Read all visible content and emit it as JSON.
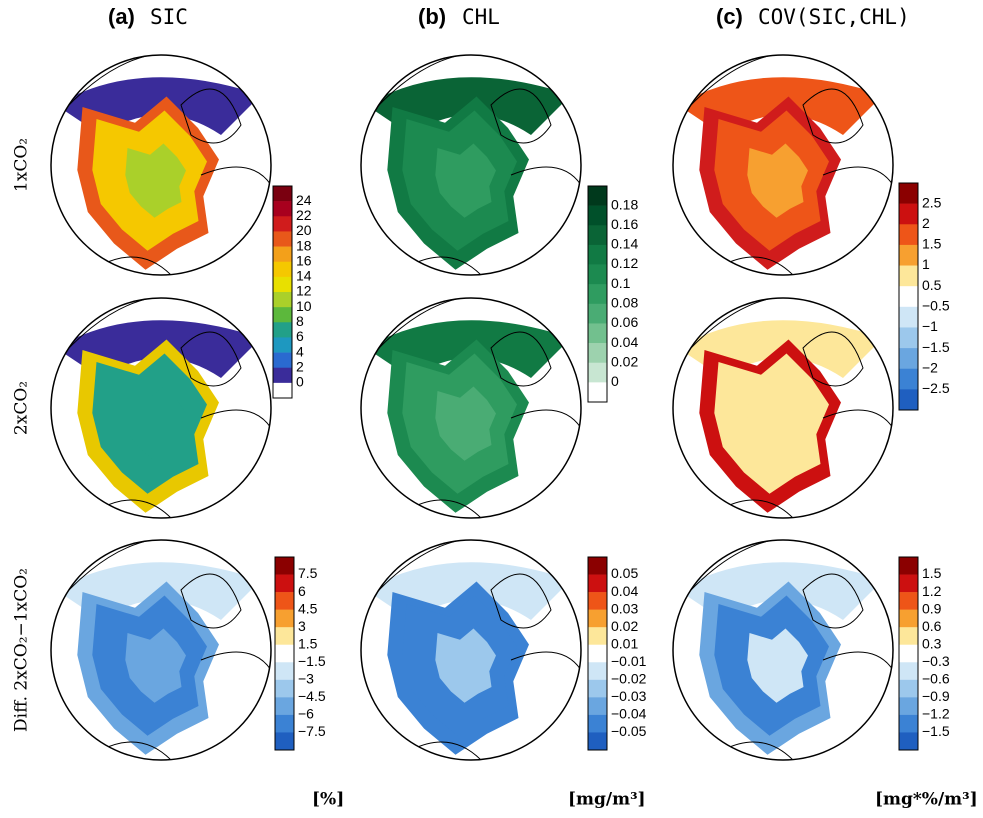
{
  "columns": [
    {
      "label": "(a)",
      "title": "SIC"
    },
    {
      "label": "(b)",
      "title": "CHL"
    },
    {
      "label": "(c)",
      "title": "COV(SIC,CHL)"
    }
  ],
  "rows": [
    "1xCO₂",
    "2xCO₂",
    "Diff. 2xCO₂−1xCO₂"
  ],
  "colorbars": [
    {
      "ticks": [
        "24",
        "22",
        "20",
        "18",
        "16",
        "14",
        "12",
        "10",
        "8",
        "6",
        "4",
        "2",
        "0"
      ],
      "colors": [
        "#7a0010",
        "#a8001e",
        "#d01c1c",
        "#e8581a",
        "#f3a01a",
        "#f5c800",
        "#e8e000",
        "#aad02a",
        "#5cb83c",
        "#22a088",
        "#1e98c0",
        "#2a6ad0",
        "#3a2c9a",
        "#ffffff"
      ]
    },
    {
      "ticks": [
        "7.5",
        "6",
        "4.5",
        "3",
        "1.5",
        "−1.5",
        "−3",
        "−4.5",
        "−6",
        "−7.5"
      ],
      "colors": [
        "#8b0000",
        "#cc1010",
        "#ee5518",
        "#f7a030",
        "#fde79a",
        "#ffffff",
        "#cfe6f6",
        "#9cc8ec",
        "#6aa6e0",
        "#3b82d4",
        "#1f5fc0"
      ]
    },
    {
      "ticks": [
        "0.18",
        "0.16",
        "0.14",
        "0.12",
        "0.1",
        "0.08",
        "0.06",
        "0.04",
        "0.02",
        "0"
      ],
      "colors": [
        "#00391c",
        "#00502a",
        "#0a6436",
        "#117a44",
        "#1c8a50",
        "#2f9c60",
        "#4aac74",
        "#72c08e",
        "#9dd2ae",
        "#c8e6d2",
        "#ffffff"
      ]
    },
    {
      "ticks": [
        "0.05",
        "0.04",
        "0.03",
        "0.02",
        "0.01",
        "−0.01",
        "−0.02",
        "−0.03",
        "−0.04",
        "−0.05"
      ],
      "colors": [
        "#8b0000",
        "#cc1010",
        "#ee5518",
        "#f7a030",
        "#fde79a",
        "#ffffff",
        "#cfe6f6",
        "#9cc8ec",
        "#6aa6e0",
        "#3b82d4",
        "#1f5fc0"
      ]
    },
    {
      "ticks": [
        "2.5",
        "2",
        "1.5",
        "1",
        "0.5",
        "−0.5",
        "−1",
        "−1.5",
        "−2",
        "−2.5"
      ],
      "colors": [
        "#8b0000",
        "#cc1010",
        "#ee5518",
        "#f7a030",
        "#fde79a",
        "#ffffff",
        "#cfe6f6",
        "#9cc8ec",
        "#6aa6e0",
        "#3b82d4",
        "#1f5fc0"
      ]
    },
    {
      "ticks": [
        "1.5",
        "1.2",
        "0.9",
        "0.6",
        "0.3",
        "−0.3",
        "−0.6",
        "−0.9",
        "−1.2",
        "−1.5"
      ],
      "colors": [
        "#8b0000",
        "#cc1010",
        "#ee5518",
        "#f7a030",
        "#fde79a",
        "#ffffff",
        "#cfe6f6",
        "#9cc8ec",
        "#6aa6e0",
        "#3b82d4",
        "#1f5fc0"
      ]
    }
  ],
  "units": [
    "[%]",
    "[mg/m³]",
    "[mg*%/m³]"
  ]
}
